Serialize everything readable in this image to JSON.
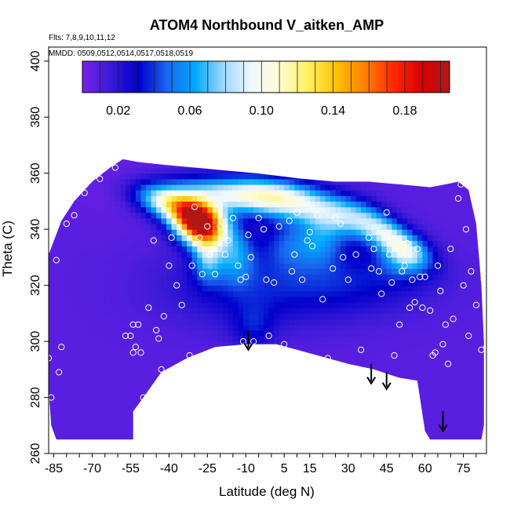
{
  "chart_data": {
    "type": "heatmap",
    "title": "ATOM4 Northbound V_aitken_AMP",
    "annotations": [
      "Flts: 7,8,9,10,11,12",
      "MMDD: 0509,0512,0514,0517,0518,0519"
    ],
    "xlabel": "Latitude (deg N)",
    "ylabel": "Theta (C)",
    "xlim": [
      -87,
      84
    ],
    "ylim": [
      260,
      405
    ],
    "x_ticks": [
      -85,
      -70,
      -55,
      -40,
      -25,
      -10,
      5,
      15,
      30,
      45,
      60,
      75
    ],
    "y_ticks": [
      260,
      280,
      300,
      320,
      340,
      360,
      380,
      400
    ],
    "colorbar": {
      "range": [
        0,
        0.205
      ],
      "tick_values": [
        0.02,
        0.06,
        0.1,
        0.14,
        0.18
      ],
      "tick_labels": [
        "0.02",
        "0.06",
        "0.10",
        "0.14",
        "0.18"
      ],
      "colors": [
        "#7a22e8",
        "#3a1ad8",
        "#0000cc",
        "#1a66ee",
        "#00aaff",
        "#9fd8ff",
        "#f0f8ff",
        "#fffbd0",
        "#fff060",
        "#ffc000",
        "#ff8000",
        "#ff2a00",
        "#d80000",
        "#b01818"
      ]
    },
    "field": {
      "background_value": 0.008,
      "anomalies": [
        {
          "lat": -28,
          "theta": 342,
          "amp": 0.19,
          "sx": 7,
          "sy": 5,
          "angle": -20
        },
        {
          "lat": -38,
          "theta": 349,
          "amp": 0.1,
          "sx": 10,
          "sy": 4,
          "angle": -15
        },
        {
          "lat": -18,
          "theta": 352,
          "amp": 0.06,
          "sx": 14,
          "sy": 4,
          "angle": -10
        },
        {
          "lat": -2,
          "theta": 353,
          "amp": 0.06,
          "sx": 12,
          "sy": 4,
          "angle": -8
        },
        {
          "lat": 12,
          "theta": 349,
          "amp": 0.05,
          "sx": 12,
          "sy": 5,
          "angle": -10
        },
        {
          "lat": 30,
          "theta": 344,
          "amp": 0.05,
          "sx": 10,
          "sy": 5,
          "angle": -12
        },
        {
          "lat": 47,
          "theta": 337,
          "amp": 0.07,
          "sx": 10,
          "sy": 4,
          "angle": -30
        },
        {
          "lat": 52,
          "theta": 330,
          "amp": 0.04,
          "sx": 7,
          "sy": 5,
          "angle": 0
        },
        {
          "lat": -14,
          "theta": 331,
          "amp": 0.04,
          "sx": 5,
          "sy": 7,
          "angle": 0
        },
        {
          "lat": -25,
          "theta": 330,
          "amp": 0.05,
          "sx": 4,
          "sy": 6,
          "angle": 0
        },
        {
          "lat": 8,
          "theta": 335,
          "amp": 0.03,
          "sx": 8,
          "sy": 6,
          "angle": 0
        },
        {
          "lat": 20,
          "theta": 336,
          "amp": 0.03,
          "sx": 6,
          "sy": 6,
          "angle": 0
        },
        {
          "lat": -5,
          "theta": 320,
          "amp": 0.025,
          "sx": 25,
          "sy": 10,
          "angle": 0
        },
        {
          "lat": 35,
          "theta": 322,
          "amp": 0.02,
          "sx": 20,
          "sy": 8,
          "angle": 0
        },
        {
          "lat": -7,
          "theta": 305,
          "amp": 0.02,
          "sx": 6,
          "sy": 6,
          "angle": 0
        },
        {
          "lat": -60,
          "theta": 360,
          "amp": -0.004,
          "sx": 15,
          "sy": 10,
          "angle": 0
        }
      ],
      "domain_polygon": [
        [
          -87,
          298
        ],
        [
          -87,
          331
        ],
        [
          -82,
          343
        ],
        [
          -77,
          350
        ],
        [
          -70,
          357
        ],
        [
          -63,
          362
        ],
        [
          -58,
          365
        ],
        [
          -52,
          364
        ],
        [
          -42,
          363
        ],
        [
          -30,
          362
        ],
        [
          -18,
          361
        ],
        [
          -6,
          360
        ],
        [
          3,
          359
        ],
        [
          12,
          358
        ],
        [
          25,
          357
        ],
        [
          38,
          357
        ],
        [
          50,
          356
        ],
        [
          62,
          355
        ],
        [
          68,
          356
        ],
        [
          73,
          357
        ],
        [
          77,
          354
        ],
        [
          80,
          342
        ],
        [
          82,
          320
        ],
        [
          83,
          300
        ],
        [
          83,
          270
        ],
        [
          82,
          265
        ],
        [
          62,
          265
        ],
        [
          60,
          268
        ],
        [
          57,
          286
        ],
        [
          50,
          287
        ],
        [
          40,
          290
        ],
        [
          30,
          292
        ],
        [
          22,
          294
        ],
        [
          10,
          297
        ],
        [
          2,
          299
        ],
        [
          -10,
          299
        ],
        [
          -22,
          298
        ],
        [
          -33,
          294
        ],
        [
          -43,
          289
        ],
        [
          -50,
          280
        ],
        [
          -54,
          275
        ],
        [
          -54,
          265
        ],
        [
          -84,
          265
        ],
        [
          -86,
          270
        ],
        [
          -87,
          283
        ]
      ]
    },
    "points": [
      [
        -87,
        294
      ],
      [
        -86,
        280
      ],
      [
        -84,
        329
      ],
      [
        -83,
        289
      ],
      [
        -82,
        298
      ],
      [
        -80,
        342
      ],
      [
        -77,
        345
      ],
      [
        -73,
        353
      ],
      [
        -67,
        358
      ],
      [
        -61,
        362
      ],
      [
        -57,
        302
      ],
      [
        -55,
        302
      ],
      [
        -54,
        306
      ],
      [
        -54,
        296
      ],
      [
        -53,
        298
      ],
      [
        -52,
        306
      ],
      [
        -51,
        296
      ],
      [
        -50,
        280
      ],
      [
        -48,
        312
      ],
      [
        -46,
        336
      ],
      [
        -45,
        304
      ],
      [
        -44,
        301
      ],
      [
        -43,
        290
      ],
      [
        -42,
        309
      ],
      [
        -40,
        327
      ],
      [
        -39,
        337
      ],
      [
        -37,
        320
      ],
      [
        -35,
        313
      ],
      [
        -32,
        295
      ],
      [
        -31,
        327
      ],
      [
        -30,
        348
      ],
      [
        -28,
        337
      ],
      [
        -27,
        324
      ],
      [
        -25,
        341
      ],
      [
        -24,
        331
      ],
      [
        -22,
        324
      ],
      [
        -20,
        341
      ],
      [
        -18,
        331
      ],
      [
        -17,
        336
      ],
      [
        -15,
        344
      ],
      [
        -13,
        327
      ],
      [
        -12,
        322
      ],
      [
        -11,
        300
      ],
      [
        -10,
        323
      ],
      [
        -9,
        338
      ],
      [
        -8,
        330
      ],
      [
        -7,
        300
      ],
      [
        -5,
        344
      ],
      [
        -3,
        340
      ],
      [
        -2,
        322
      ],
      [
        -1,
        302
      ],
      [
        1,
        321
      ],
      [
        3,
        341
      ],
      [
        5,
        299
      ],
      [
        7,
        343
      ],
      [
        8,
        325
      ],
      [
        9,
        331
      ],
      [
        10,
        346
      ],
      [
        12,
        322
      ],
      [
        14,
        336
      ],
      [
        15,
        339
      ],
      [
        16,
        334
      ],
      [
        18,
        345
      ],
      [
        20,
        315
      ],
      [
        22,
        294
      ],
      [
        24,
        326
      ],
      [
        25,
        344
      ],
      [
        27,
        342
      ],
      [
        28,
        330
      ],
      [
        30,
        322
      ],
      [
        33,
        331
      ],
      [
        35,
        297
      ],
      [
        38,
        337
      ],
      [
        39,
        326
      ],
      [
        40,
        333
      ],
      [
        42,
        325
      ],
      [
        43,
        317
      ],
      [
        45,
        346
      ],
      [
        46,
        331
      ],
      [
        47,
        321
      ],
      [
        48,
        295
      ],
      [
        50,
        306
      ],
      [
        51,
        325
      ],
      [
        52,
        327
      ],
      [
        53,
        335
      ],
      [
        54,
        312
      ],
      [
        55,
        322
      ],
      [
        56,
        314
      ],
      [
        57,
        333
      ],
      [
        58,
        323
      ],
      [
        59,
        312
      ],
      [
        60,
        323
      ],
      [
        62,
        311
      ],
      [
        63,
        295
      ],
      [
        64,
        296
      ],
      [
        65,
        327
      ],
      [
        66,
        318
      ],
      [
        67,
        299
      ],
      [
        68,
        306
      ],
      [
        69,
        292
      ],
      [
        70,
        333
      ],
      [
        71,
        308
      ],
      [
        73,
        351
      ],
      [
        74,
        356
      ],
      [
        75,
        320
      ],
      [
        76,
        340
      ],
      [
        77,
        302
      ],
      [
        78,
        325
      ],
      [
        79,
        355
      ],
      [
        80,
        313
      ],
      [
        81,
        349
      ],
      [
        82,
        297
      ],
      [
        83,
        322
      ],
      [
        84,
        298
      ]
    ],
    "arrows": [
      {
        "lat": -9,
        "theta_top": 304,
        "theta_tip": 297
      },
      {
        "lat": 39,
        "theta_top": 292,
        "theta_tip": 285
      },
      {
        "lat": 45,
        "theta_top": 289,
        "theta_tip": 283
      },
      {
        "lat": 67,
        "theta_top": 275,
        "theta_tip": 268
      }
    ]
  }
}
